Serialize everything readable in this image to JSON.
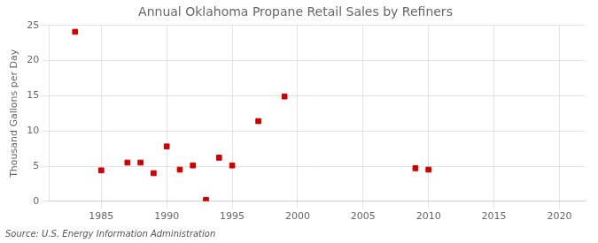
{
  "chart_data": {
    "type": "scatter",
    "title": "Annual Oklahoma Propane Retail Sales by Refiners",
    "ylabel": "Thousand Gallons per Day",
    "source": "Source: U.S. Energy Information Administration",
    "x": [
      1983,
      1985,
      1987,
      1988,
      1989,
      1990,
      1991,
      1992,
      1993,
      1994,
      1995,
      1997,
      1999,
      2009,
      2010
    ],
    "values": [
      24.1,
      4.4,
      5.5,
      5.5,
      4.0,
      7.8,
      4.5,
      5.1,
      0.2,
      6.2,
      5.1,
      11.4,
      14.9,
      4.7,
      4.5
    ],
    "color": "#cc0000",
    "marker": "square",
    "xlim": [
      1981,
      2022
    ],
    "xticks": [
      1985,
      1990,
      1995,
      2000,
      2005,
      2010,
      2015,
      2020
    ],
    "ylim": [
      0,
      25
    ],
    "yticks": [
      0,
      5,
      10,
      15,
      20,
      25
    ],
    "grid": true
  }
}
